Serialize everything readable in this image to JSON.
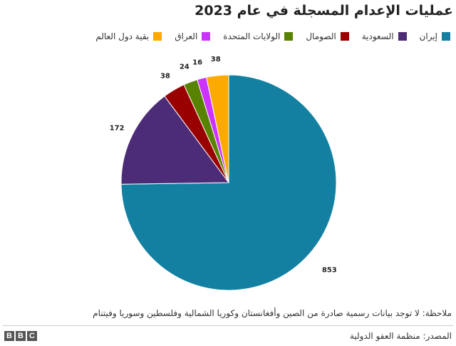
{
  "chart_data": {
    "type": "pie",
    "title": "عمليات الإعدام المسجلة في عام 2023",
    "start_angle_deg": 0,
    "direction": "clockwise",
    "legend_placement": "top",
    "slices": [
      {
        "name": "إيران",
        "value": 853,
        "color": "#1380a1"
      },
      {
        "name": "السعودية",
        "value": 172,
        "color": "#4d2c77"
      },
      {
        "name": "الصومال",
        "value": 38,
        "color": "#990000"
      },
      {
        "name": "الولايات المتحدة",
        "value": 24,
        "color": "#588300"
      },
      {
        "name": "العراق",
        "value": 16,
        "color": "#cc33ff"
      },
      {
        "name": "بقية دول العالم",
        "value": 38,
        "color": "#fdaa00"
      }
    ]
  },
  "footer": {
    "note": "ملاحظة: لا توجد بيانات رسمية صادرة من الصين وأفغانستان وكوريا الشمالية وفلسطين وسوريا وفيتنام",
    "source": "المصدر: منظمة العفو الدولية",
    "logo_letters": [
      "B",
      "B",
      "C"
    ]
  }
}
